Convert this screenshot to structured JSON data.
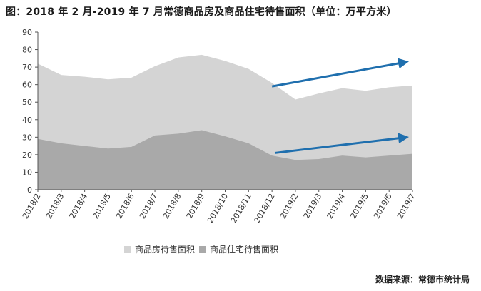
{
  "title": "图：2018 年 2 月-2019 年 7 月常德商品房及商品住宅待售面积（单位：万平方米）",
  "source": "数据来源：常德市统计局",
  "colors": {
    "series_total": "#d4d4d4",
    "series_residential": "#a9a9a9",
    "arrow": "#1f6fae",
    "axis": "#555555"
  },
  "chart_data": {
    "type": "area",
    "title": "图：2018 年 2 月-2019 年 7 月常德商品房及商品住宅待售面积（单位：万平方米）",
    "xlabel": "",
    "ylabel": "",
    "ylim": [
      0,
      90
    ],
    "yticks": [
      0,
      10,
      20,
      30,
      40,
      50,
      60,
      70,
      80,
      90
    ],
    "grid": false,
    "legend_position": "bottom",
    "categories": [
      "2018/2",
      "2018/3",
      "2018/4",
      "2018/5",
      "2018/6",
      "2018/7",
      "2018/8",
      "2018/9",
      "2018/10",
      "2018/11",
      "2018/12",
      "2019/2",
      "2019/3",
      "2019/4",
      "2019/5",
      "2019/6",
      "2019/7"
    ],
    "series": [
      {
        "name": "商品房待售面积",
        "values": [
          72,
          65.5,
          64.5,
          63,
          64,
          70.5,
          75.5,
          77,
          73.5,
          69,
          61,
          51.5,
          55,
          58,
          56.5,
          58.5,
          59.5
        ]
      },
      {
        "name": "商品住宅待售面积",
        "values": [
          29,
          26.5,
          25,
          23.5,
          24.5,
          31,
          32,
          34,
          30.5,
          26.5,
          19.5,
          17,
          17.5,
          19.5,
          18.5,
          19.5,
          20.5
        ]
      }
    ],
    "annotations": [
      {
        "type": "arrow",
        "from": [
          "2018/12",
          59
        ],
        "to": [
          "2019/7",
          73
        ],
        "color": "#1f6fae"
      },
      {
        "type": "arrow",
        "from": [
          "2018/12",
          21
        ],
        "to": [
          "2019/7",
          30
        ],
        "color": "#1f6fae"
      }
    ]
  }
}
